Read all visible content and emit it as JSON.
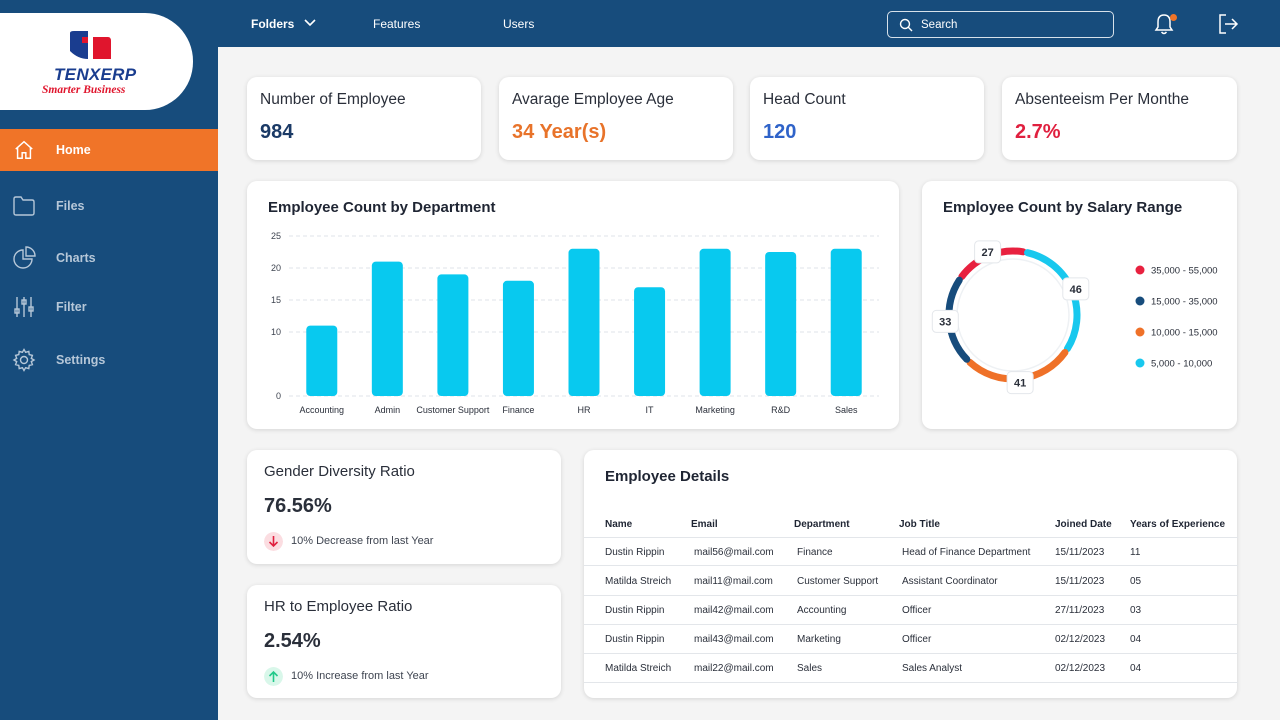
{
  "brand": {
    "name": "TENXERP",
    "tagline": "Smarter Business"
  },
  "nav": [
    {
      "label": "Home",
      "icon": "home-icon",
      "active": true
    },
    {
      "label": "Files",
      "icon": "folder-icon",
      "active": false
    },
    {
      "label": "Charts",
      "icon": "pie-chart-icon",
      "active": false
    },
    {
      "label": "Filter",
      "icon": "filter-sliders-icon",
      "active": false
    },
    {
      "label": "Settings",
      "icon": "gear-icon",
      "active": false
    }
  ],
  "topbar": {
    "folders": "Folders",
    "features": "Features",
    "users": "Users",
    "search_placeholder": "Search"
  },
  "kpis": [
    {
      "title": "Number of Employee",
      "value": "984",
      "color": "#1b3a66"
    },
    {
      "title": "Avarage Employee Age",
      "value": "34 Year(s)",
      "color": "#e8732a"
    },
    {
      "title": "Head Count",
      "value": "120",
      "color": "#2f63c9"
    },
    {
      "title": "Absenteeism Per Monthe",
      "value": "2.7%",
      "color": "#e0203f"
    }
  ],
  "dept_chart": {
    "title": "Employee Count by Department"
  },
  "salary_chart": {
    "title": "Employee Count by Salary Range"
  },
  "ratios": [
    {
      "title": "Gender Diversity Ratio",
      "value": "76.56%",
      "note": "10% Decrease from last Year",
      "trend": "down"
    },
    {
      "title": "HR to Employee Ratio",
      "value": "2.54%",
      "note": "10% Increase from last Year",
      "trend": "up"
    }
  ],
  "details": {
    "title": "Employee Details",
    "columns": [
      "Name",
      "Email",
      "Department",
      "Job Title",
      "Joined Date",
      "Years of Experience"
    ],
    "rows": [
      [
        "Dustin Rippin",
        "mail56@mail.com",
        "Finance",
        "Head of Finance Department",
        "15/11/2023",
        "11"
      ],
      [
        "Matilda Streich",
        "mail11@mail.com",
        "Customer Support",
        "Assistant Coordinator",
        "15/11/2023",
        "05"
      ],
      [
        "Dustin Rippin",
        "mail42@mail.com",
        "Accounting",
        "Officer",
        "27/11/2023",
        "03"
      ],
      [
        "Dustin Rippin",
        "mail43@mail.com",
        "Marketing",
        "Officer",
        "02/12/2023",
        "04"
      ],
      [
        "Matilda Streich",
        "mail22@mail.com",
        "Sales",
        "Sales Analyst",
        "02/12/2023",
        "04"
      ]
    ]
  },
  "chart_data": [
    {
      "type": "bar",
      "title": "Employee Count by Department",
      "categories": [
        "Accounting",
        "Admin",
        "Customer Support",
        "Finance",
        "HR",
        "IT",
        "Marketing",
        "R&D",
        "Sales"
      ],
      "values": [
        11,
        21,
        19,
        18,
        23,
        17,
        23,
        22.5,
        23
      ],
      "ylim": [
        0,
        25
      ],
      "yticks": [
        0,
        10,
        15,
        20,
        25
      ],
      "grid": true,
      "color": "#08c9ef"
    },
    {
      "type": "pie",
      "title": "Employee Count by Salary Range",
      "donut": true,
      "slices": [
        {
          "label": "35,000 - 55,000",
          "value": 27,
          "color": "#e8213f"
        },
        {
          "label": "5,000 - 10,000",
          "value": 46,
          "color": "#18c8ee"
        },
        {
          "label": "10,000 - 15,000",
          "value": 41,
          "color": "#ef7128"
        },
        {
          "label": "15,000 - 35,000",
          "value": 33,
          "color": "#174c7c"
        }
      ],
      "legend": [
        {
          "label": "35,000 - 55,000",
          "color": "#e8213f"
        },
        {
          "label": "15,000 - 35,000",
          "color": "#174c7c"
        },
        {
          "label": "10,000 - 15,000",
          "color": "#ef7128"
        },
        {
          "label": "5,000 - 10,000",
          "color": "#18c8ee"
        }
      ],
      "legend_position": "right"
    }
  ]
}
